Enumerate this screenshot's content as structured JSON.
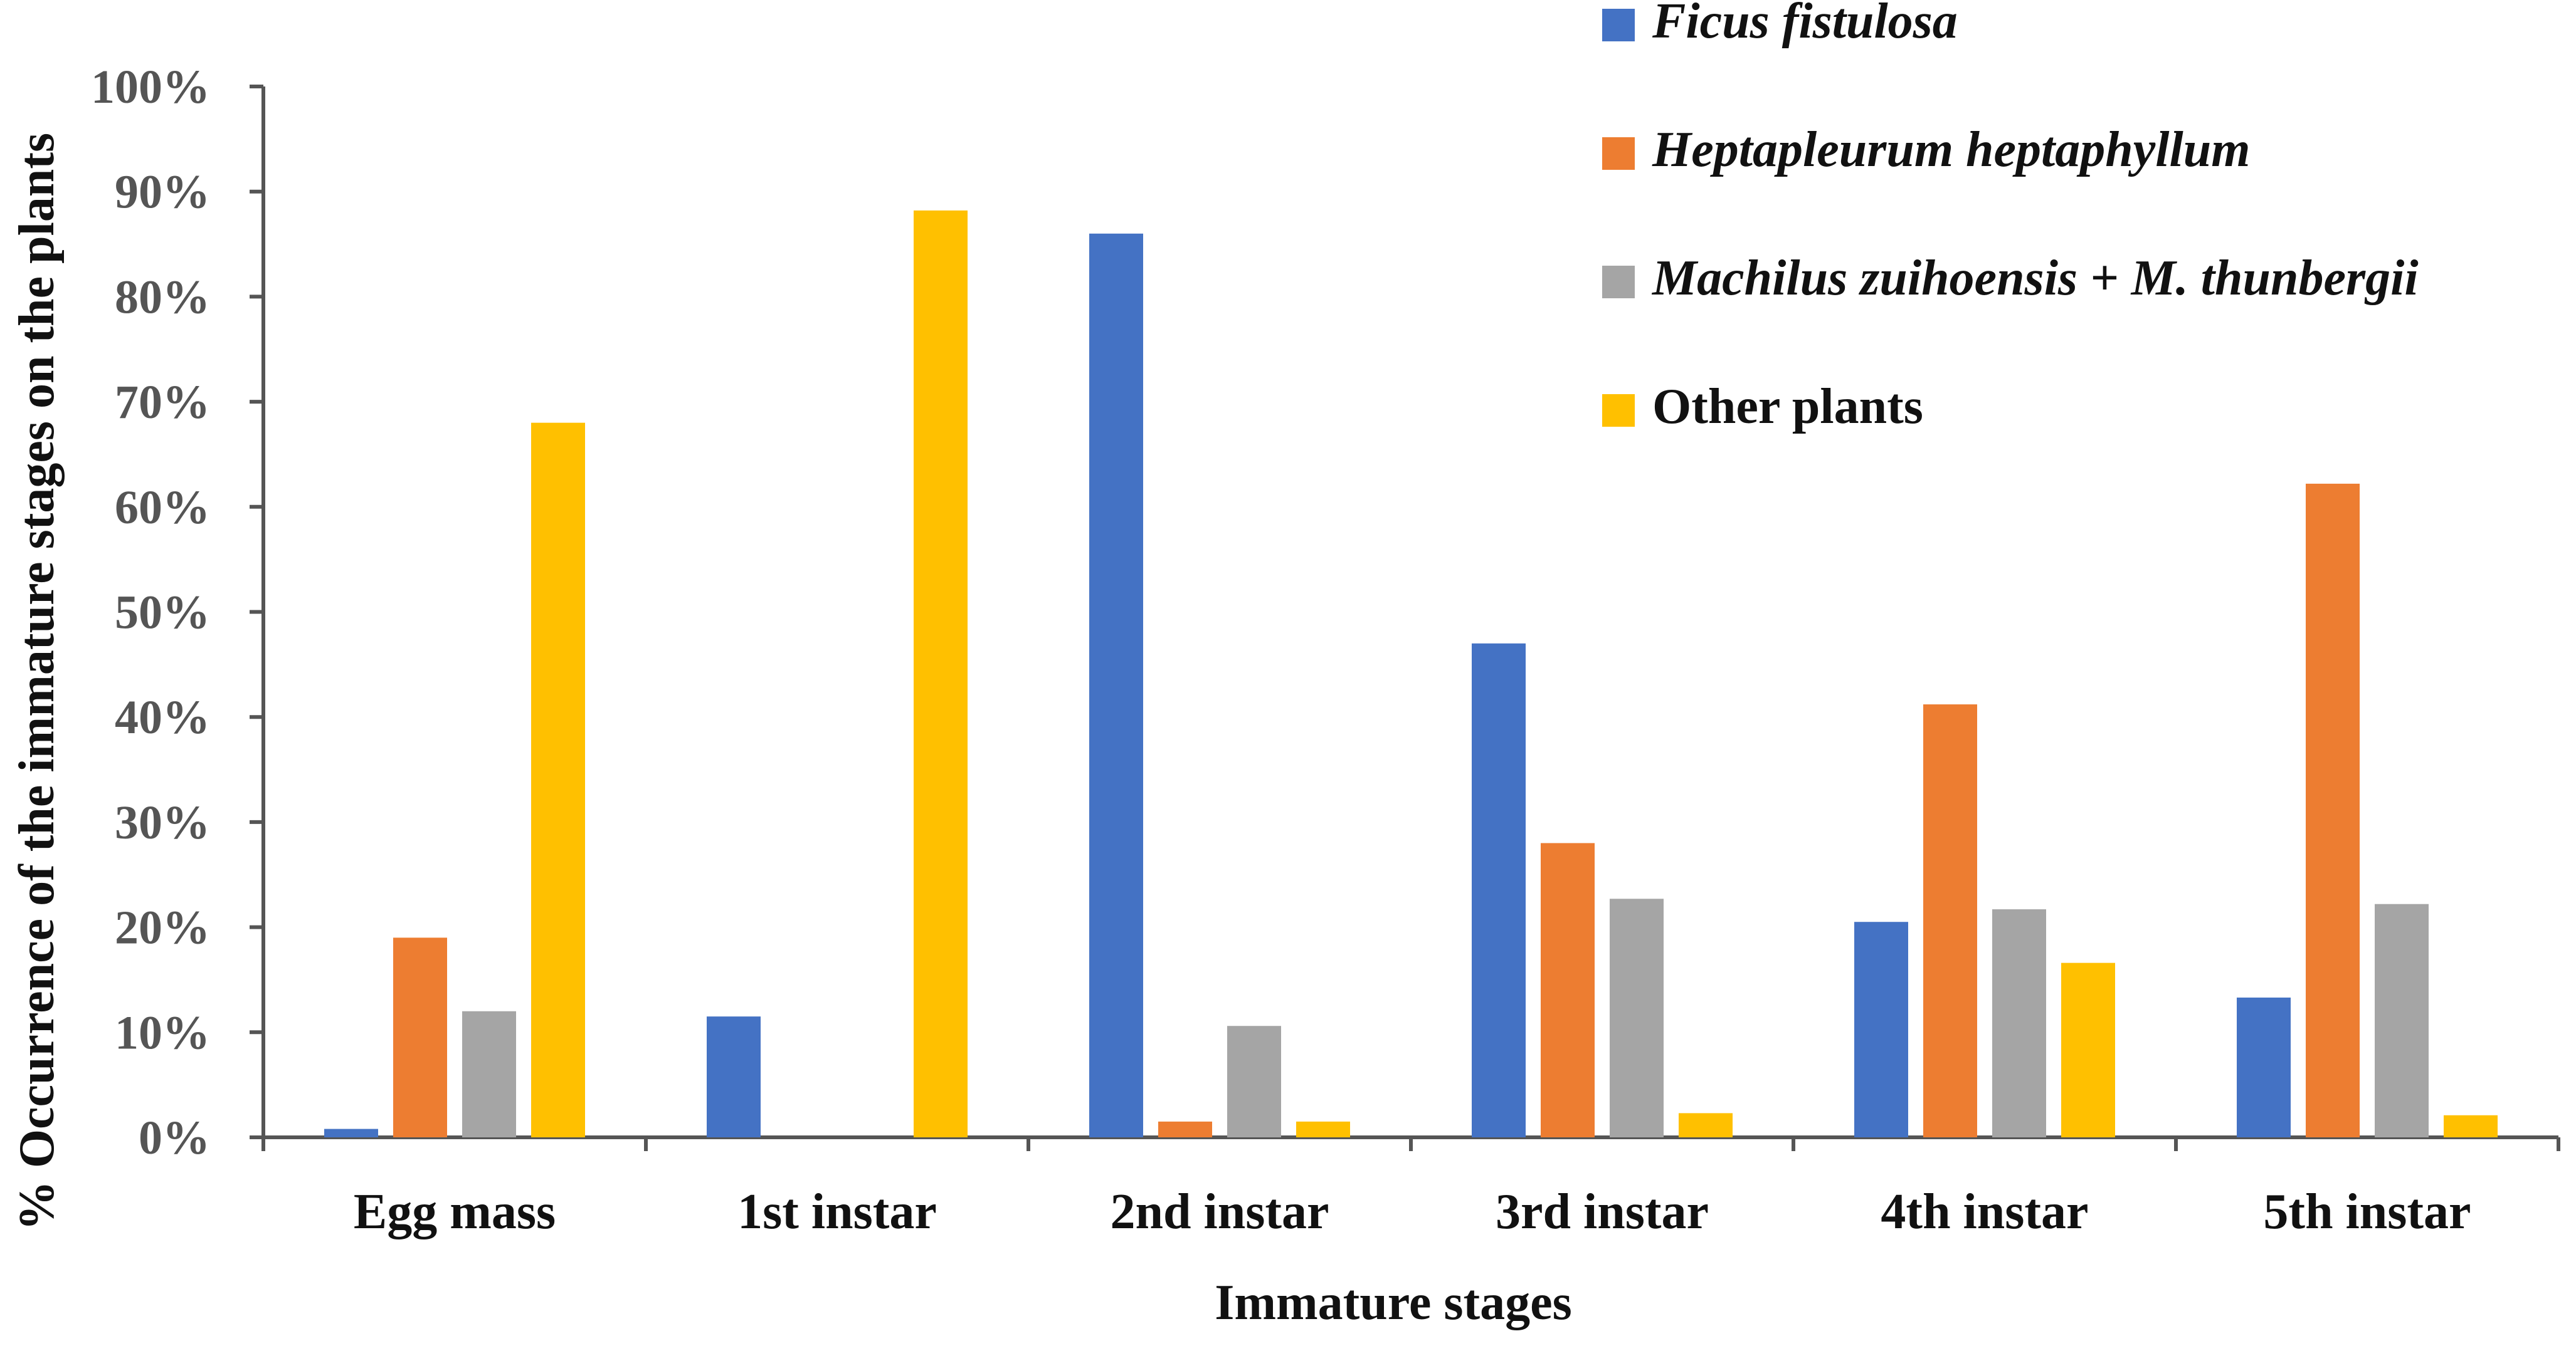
{
  "chart_data": {
    "type": "bar",
    "title": "",
    "xlabel": "Immature stages",
    "ylabel": "% Occurrence of the immature stages on the plants",
    "ylim": [
      0,
      100
    ],
    "yticks": [
      "0%",
      "10%",
      "20%",
      "30%",
      "40%",
      "50%",
      "60%",
      "70%",
      "80%",
      "90%",
      "100%"
    ],
    "categories": [
      "Egg mass",
      "1st instar",
      "2nd instar",
      "3rd instar",
      "4th instar",
      "5th instar"
    ],
    "series": [
      {
        "name": "Ficus fistulosa",
        "italic": true,
        "color": "#4472C4",
        "values": [
          0.8,
          11.5,
          86,
          47,
          20.5,
          13.3
        ]
      },
      {
        "name": "Heptapleurum heptaphyllum",
        "italic": true,
        "color": "#ED7D31",
        "values": [
          19,
          0,
          1.5,
          28,
          41.2,
          62.2
        ]
      },
      {
        "name": "Machilus zuihoensis + M. thunbergii",
        "italic": true,
        "color": "#A5A5A5",
        "values": [
          12,
          0,
          10.6,
          22.7,
          21.7,
          22.2
        ]
      },
      {
        "name": "Other plants",
        "italic": false,
        "color": "#FFC000",
        "values": [
          68,
          88.2,
          1.5,
          2.3,
          16.6,
          2.1
        ]
      }
    ],
    "legend": "top-right",
    "grid": false
  }
}
